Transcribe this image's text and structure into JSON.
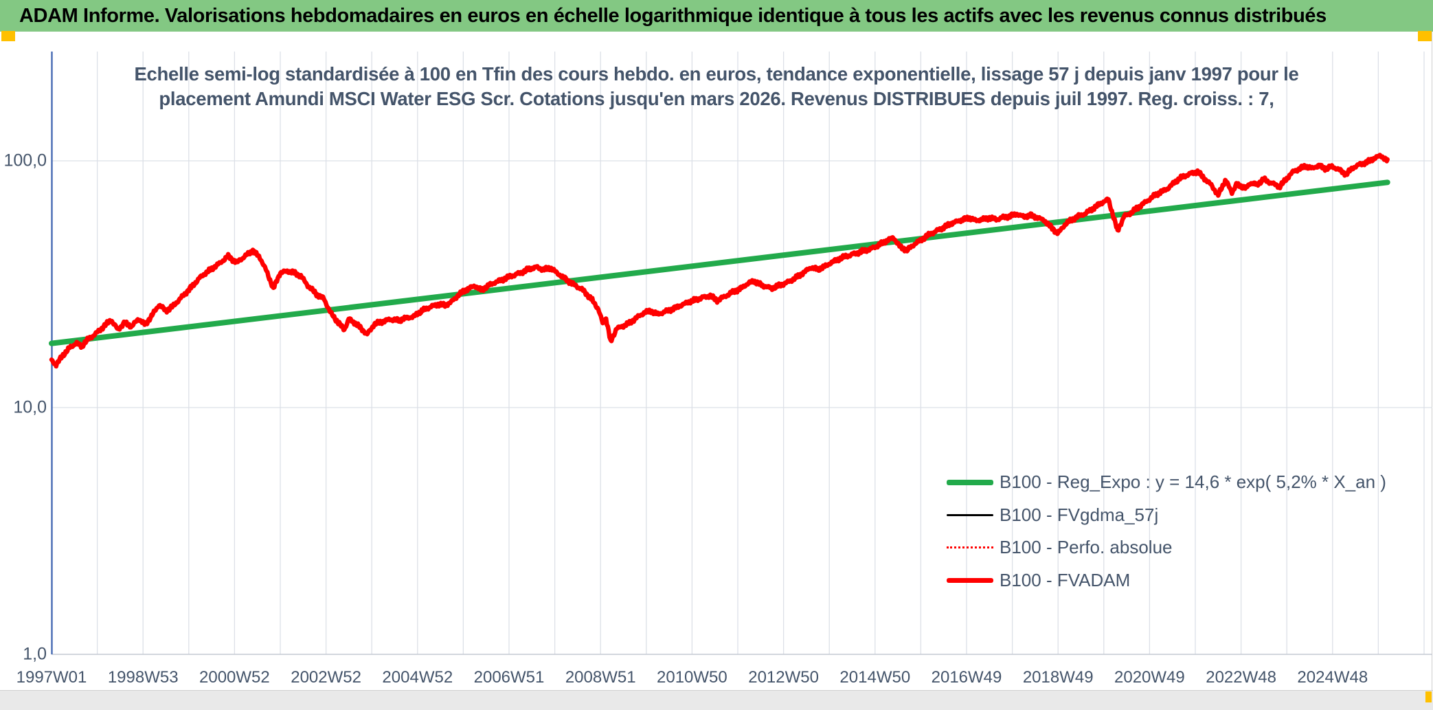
{
  "window": {
    "top_bar": {
      "title": "ADAM Informe. Valorisations hebdomadaires en euros en échelle logarithmique identique à tous les actifs avec les revenus connus distribués",
      "bg_color": "#83C883",
      "text_color": "#000000"
    },
    "corner_marker_color": "#FFC000"
  },
  "chart_data": {
    "type": "line",
    "title_lines": [
      "Echelle semi-log standardisée à 100 en Tfin des cours hebdo. en euros, tendance exponentielle, lissage 57 j depuis janv 1997 pour le",
      "placement Amundi MSCI Water ESG Scr. Cotations jusqu'en mars 2026. Revenus DISTRIBUES depuis juil 1997. Reg. croiss. : 7,"
    ],
    "x_axis": {
      "tick_labels": [
        "1997W01",
        "1998W53",
        "2000W52",
        "2002W52",
        "2004W52",
        "2006W51",
        "2008W51",
        "2010W50",
        "2012W50",
        "2014W50",
        "2016W49",
        "2018W49",
        "2020W49",
        "2022W48",
        "2024W48"
      ],
      "tick_years": [
        1997,
        1999,
        2001,
        2003,
        2005,
        2007,
        2009,
        2011,
        2013,
        2015,
        2017,
        2019,
        2021,
        2023,
        2025
      ],
      "gridline_year_first": 1997,
      "gridline_year_last": 2027,
      "min_year": 1997.0,
      "max_year": 2026.2,
      "gridline_color": "#DCE0E7",
      "axis_line_color": "#4A6DB5"
    },
    "y_axis": {
      "scale": "log",
      "tick_labels": [
        "100,0",
        "10,0",
        "1,0"
      ],
      "tick_values": [
        100,
        10,
        1
      ],
      "gridline_color": "#DCE0E7",
      "baseline_color": "#C3C8D2"
    },
    "series": [
      {
        "id": "reg_expo",
        "name": "B100 - Reg_Expo : y = 14,6 * exp( 5,2% * X_an )",
        "color": "#22AA4B",
        "style": "solid",
        "width": 8,
        "points": [
          [
            1997.0,
            18.2
          ],
          [
            2026.2,
            81.8
          ]
        ]
      },
      {
        "id": "fvgdma",
        "name": "B100 - FVgdma_57j",
        "color": "#000000",
        "style": "solid",
        "width": 3.2,
        "derived_from": "fvadam",
        "smoothing_weeks": 9
      },
      {
        "id": "perfo",
        "name": "B100 - Perfo. absolue",
        "color": "#FF0000",
        "style": "dotted",
        "width": 2.2,
        "derived_from": "fvadam"
      },
      {
        "id": "fvadam",
        "name": "B100 - FVADAM",
        "color": "#FF0000",
        "style": "solid",
        "width": 6.5,
        "points": [
          [
            1997.0,
            15.5
          ],
          [
            1997.1,
            14.9
          ],
          [
            1997.25,
            16.3
          ],
          [
            1997.4,
            17.5
          ],
          [
            1997.55,
            18.3
          ],
          [
            1997.65,
            17.7
          ],
          [
            1997.8,
            18.9
          ],
          [
            1997.95,
            19.8
          ],
          [
            1998.1,
            21.0
          ],
          [
            1998.3,
            22.6
          ],
          [
            1998.45,
            20.7
          ],
          [
            1998.6,
            22.1
          ],
          [
            1998.75,
            21.3
          ],
          [
            1998.9,
            22.9
          ],
          [
            1999.05,
            21.7
          ],
          [
            1999.2,
            23.7
          ],
          [
            1999.35,
            26.1
          ],
          [
            1999.5,
            24.7
          ],
          [
            1999.65,
            25.7
          ],
          [
            1999.85,
            28.1
          ],
          [
            2000.05,
            30.7
          ],
          [
            2000.25,
            33.7
          ],
          [
            2000.45,
            36.1
          ],
          [
            2000.65,
            38.1
          ],
          [
            2000.86,
            41.1
          ],
          [
            2001.05,
            38.7
          ],
          [
            2001.2,
            40.7
          ],
          [
            2001.4,
            43.3
          ],
          [
            2001.55,
            40.7
          ],
          [
            2001.7,
            35.7
          ],
          [
            2001.85,
            30.4
          ],
          [
            2002.0,
            35.2
          ],
          [
            2002.15,
            35.7
          ],
          [
            2002.3,
            35.2
          ],
          [
            2002.45,
            34.2
          ],
          [
            2002.6,
            31.2
          ],
          [
            2002.8,
            28.7
          ],
          [
            2002.95,
            27.7
          ],
          [
            2003.1,
            24.2
          ],
          [
            2003.25,
            22.3
          ],
          [
            2003.4,
            20.7
          ],
          [
            2003.5,
            22.9
          ],
          [
            2003.62,
            22.0
          ],
          [
            2003.75,
            21.1
          ],
          [
            2003.9,
            19.8
          ],
          [
            2004.05,
            21.7
          ],
          [
            2004.2,
            22.2
          ],
          [
            2004.4,
            22.8
          ],
          [
            2004.6,
            22.5
          ],
          [
            2004.75,
            23.1
          ],
          [
            2004.9,
            23.3
          ],
          [
            2005.1,
            24.7
          ],
          [
            2005.3,
            25.7
          ],
          [
            2005.45,
            26.2
          ],
          [
            2005.6,
            25.9
          ],
          [
            2005.75,
            26.9
          ],
          [
            2005.9,
            28.7
          ],
          [
            2006.1,
            30.2
          ],
          [
            2006.25,
            31.2
          ],
          [
            2006.4,
            29.9
          ],
          [
            2006.55,
            31.2
          ],
          [
            2006.7,
            32.2
          ],
          [
            2006.85,
            33.0
          ],
          [
            2007.0,
            33.8
          ],
          [
            2007.2,
            34.9
          ],
          [
            2007.4,
            36.2
          ],
          [
            2007.6,
            37.1
          ],
          [
            2007.75,
            36.3
          ],
          [
            2007.9,
            36.8
          ],
          [
            2008.05,
            35.1
          ],
          [
            2008.2,
            33.6
          ],
          [
            2008.4,
            31.6
          ],
          [
            2008.6,
            30.1
          ],
          [
            2008.8,
            27.6
          ],
          [
            2008.95,
            25.1
          ],
          [
            2009.05,
            21.9
          ],
          [
            2009.12,
            23.0
          ],
          [
            2009.22,
            18.5
          ],
          [
            2009.35,
            20.9
          ],
          [
            2009.5,
            21.4
          ],
          [
            2009.65,
            22.2
          ],
          [
            2009.8,
            23.2
          ],
          [
            2009.95,
            24.2
          ],
          [
            2010.1,
            24.7
          ],
          [
            2010.25,
            23.9
          ],
          [
            2010.4,
            24.4
          ],
          [
            2010.55,
            25.0
          ],
          [
            2010.7,
            25.7
          ],
          [
            2010.85,
            26.4
          ],
          [
            2011.05,
            27.3
          ],
          [
            2011.25,
            28.0
          ],
          [
            2011.4,
            28.3
          ],
          [
            2011.55,
            27.2
          ],
          [
            2011.7,
            28.1
          ],
          [
            2011.85,
            29.1
          ],
          [
            2012.05,
            30.3
          ],
          [
            2012.2,
            31.7
          ],
          [
            2012.35,
            32.5
          ],
          [
            2012.55,
            31.2
          ],
          [
            2012.75,
            30.4
          ],
          [
            2012.9,
            31.2
          ],
          [
            2013.1,
            32.3
          ],
          [
            2013.3,
            33.8
          ],
          [
            2013.6,
            37.0
          ],
          [
            2013.75,
            36.2
          ],
          [
            2013.9,
            37.3
          ],
          [
            2014.05,
            38.8
          ],
          [
            2014.3,
            40.6
          ],
          [
            2014.5,
            41.8
          ],
          [
            2014.7,
            42.8
          ],
          [
            2014.9,
            43.9
          ],
          [
            2015.1,
            45.8
          ],
          [
            2015.25,
            47.3
          ],
          [
            2015.4,
            48.9
          ],
          [
            2015.55,
            44.8
          ],
          [
            2015.7,
            43.3
          ],
          [
            2015.85,
            45.8
          ],
          [
            2016.0,
            47.8
          ],
          [
            2016.15,
            49.8
          ],
          [
            2016.3,
            51.5
          ],
          [
            2016.5,
            53.8
          ],
          [
            2016.7,
            56.0
          ],
          [
            2016.9,
            57.7
          ],
          [
            2017.05,
            58.8
          ],
          [
            2017.2,
            57.2
          ],
          [
            2017.35,
            58.0
          ],
          [
            2017.5,
            58.8
          ],
          [
            2017.65,
            57.8
          ],
          [
            2017.8,
            59.0
          ],
          [
            2017.95,
            59.8
          ],
          [
            2018.1,
            60.8
          ],
          [
            2018.25,
            59.3
          ],
          [
            2018.4,
            60.3
          ],
          [
            2018.55,
            58.8
          ],
          [
            2018.7,
            57.3
          ],
          [
            2018.85,
            53.8
          ],
          [
            2019.0,
            50.8
          ],
          [
            2019.15,
            55.2
          ],
          [
            2019.3,
            57.8
          ],
          [
            2019.45,
            59.8
          ],
          [
            2019.6,
            61.1
          ],
          [
            2019.75,
            63.8
          ],
          [
            2019.9,
            66.8
          ],
          [
            2020.1,
            69.8
          ],
          [
            2020.3,
            52.1
          ],
          [
            2020.45,
            59.8
          ],
          [
            2020.6,
            61.5
          ],
          [
            2020.75,
            64.8
          ],
          [
            2020.9,
            67.8
          ],
          [
            2021.1,
            72.1
          ],
          [
            2021.25,
            74.8
          ],
          [
            2021.4,
            77.3
          ],
          [
            2021.55,
            81.8
          ],
          [
            2021.7,
            85.8
          ],
          [
            2021.9,
            88.9
          ],
          [
            2022.05,
            90.1
          ],
          [
            2022.2,
            84.8
          ],
          [
            2022.35,
            79.8
          ],
          [
            2022.5,
            72.6
          ],
          [
            2022.66,
            83.5
          ],
          [
            2022.8,
            74.4
          ],
          [
            2022.9,
            80.2
          ],
          [
            2023.1,
            77.4
          ],
          [
            2023.2,
            81.2
          ],
          [
            2023.35,
            80.2
          ],
          [
            2023.5,
            84.1
          ],
          [
            2023.65,
            81.4
          ],
          [
            2023.85,
            78.7
          ],
          [
            2024.0,
            84.8
          ],
          [
            2024.15,
            90.8
          ],
          [
            2024.4,
            95.0
          ],
          [
            2024.55,
            93.2
          ],
          [
            2024.7,
            95.8
          ],
          [
            2024.85,
            92.8
          ],
          [
            2025.0,
            94.8
          ],
          [
            2025.15,
            91.8
          ],
          [
            2025.3,
            88.3
          ],
          [
            2025.45,
            93.8
          ],
          [
            2025.6,
            96.8
          ],
          [
            2025.75,
            98.8
          ],
          [
            2025.9,
            102.0
          ],
          [
            2026.05,
            105.2
          ],
          [
            2026.2,
            100.0
          ]
        ]
      }
    ],
    "legend_order": [
      "reg_expo",
      "fvgdma",
      "perfo",
      "fvadam"
    ]
  }
}
